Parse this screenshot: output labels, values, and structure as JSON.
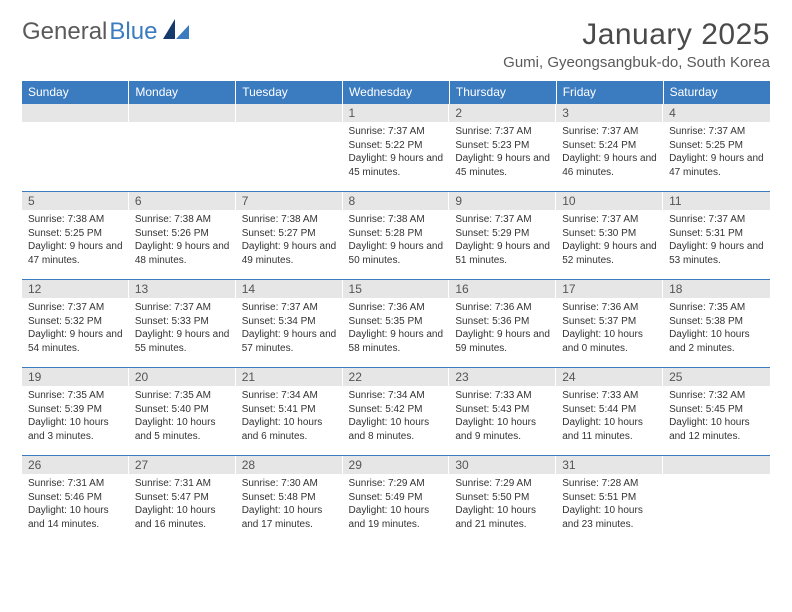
{
  "brand": {
    "part1": "General",
    "part2": "Blue"
  },
  "title": "January 2025",
  "location": "Gumi, Gyeongsangbuk-do, South Korea",
  "colors": {
    "header_bg": "#3b7bbf",
    "header_text": "#ffffff",
    "daynum_bg": "#e6e6e6",
    "rule": "#3b7bbf",
    "text": "#333333",
    "logo_gray": "#5a5a5a",
    "logo_blue": "#3b7bbf"
  },
  "day_headers": [
    "Sunday",
    "Monday",
    "Tuesday",
    "Wednesday",
    "Thursday",
    "Friday",
    "Saturday"
  ],
  "weeks": [
    [
      null,
      null,
      null,
      {
        "n": 1,
        "sunrise": "7:37 AM",
        "sunset": "5:22 PM",
        "dl": "9 hours and 45 minutes."
      },
      {
        "n": 2,
        "sunrise": "7:37 AM",
        "sunset": "5:23 PM",
        "dl": "9 hours and 45 minutes."
      },
      {
        "n": 3,
        "sunrise": "7:37 AM",
        "sunset": "5:24 PM",
        "dl": "9 hours and 46 minutes."
      },
      {
        "n": 4,
        "sunrise": "7:37 AM",
        "sunset": "5:25 PM",
        "dl": "9 hours and 47 minutes."
      }
    ],
    [
      {
        "n": 5,
        "sunrise": "7:38 AM",
        "sunset": "5:25 PM",
        "dl": "9 hours and 47 minutes."
      },
      {
        "n": 6,
        "sunrise": "7:38 AM",
        "sunset": "5:26 PM",
        "dl": "9 hours and 48 minutes."
      },
      {
        "n": 7,
        "sunrise": "7:38 AM",
        "sunset": "5:27 PM",
        "dl": "9 hours and 49 minutes."
      },
      {
        "n": 8,
        "sunrise": "7:38 AM",
        "sunset": "5:28 PM",
        "dl": "9 hours and 50 minutes."
      },
      {
        "n": 9,
        "sunrise": "7:37 AM",
        "sunset": "5:29 PM",
        "dl": "9 hours and 51 minutes."
      },
      {
        "n": 10,
        "sunrise": "7:37 AM",
        "sunset": "5:30 PM",
        "dl": "9 hours and 52 minutes."
      },
      {
        "n": 11,
        "sunrise": "7:37 AM",
        "sunset": "5:31 PM",
        "dl": "9 hours and 53 minutes."
      }
    ],
    [
      {
        "n": 12,
        "sunrise": "7:37 AM",
        "sunset": "5:32 PM",
        "dl": "9 hours and 54 minutes."
      },
      {
        "n": 13,
        "sunrise": "7:37 AM",
        "sunset": "5:33 PM",
        "dl": "9 hours and 55 minutes."
      },
      {
        "n": 14,
        "sunrise": "7:37 AM",
        "sunset": "5:34 PM",
        "dl": "9 hours and 57 minutes."
      },
      {
        "n": 15,
        "sunrise": "7:36 AM",
        "sunset": "5:35 PM",
        "dl": "9 hours and 58 minutes."
      },
      {
        "n": 16,
        "sunrise": "7:36 AM",
        "sunset": "5:36 PM",
        "dl": "9 hours and 59 minutes."
      },
      {
        "n": 17,
        "sunrise": "7:36 AM",
        "sunset": "5:37 PM",
        "dl": "10 hours and 0 minutes."
      },
      {
        "n": 18,
        "sunrise": "7:35 AM",
        "sunset": "5:38 PM",
        "dl": "10 hours and 2 minutes."
      }
    ],
    [
      {
        "n": 19,
        "sunrise": "7:35 AM",
        "sunset": "5:39 PM",
        "dl": "10 hours and 3 minutes."
      },
      {
        "n": 20,
        "sunrise": "7:35 AM",
        "sunset": "5:40 PM",
        "dl": "10 hours and 5 minutes."
      },
      {
        "n": 21,
        "sunrise": "7:34 AM",
        "sunset": "5:41 PM",
        "dl": "10 hours and 6 minutes."
      },
      {
        "n": 22,
        "sunrise": "7:34 AM",
        "sunset": "5:42 PM",
        "dl": "10 hours and 8 minutes."
      },
      {
        "n": 23,
        "sunrise": "7:33 AM",
        "sunset": "5:43 PM",
        "dl": "10 hours and 9 minutes."
      },
      {
        "n": 24,
        "sunrise": "7:33 AM",
        "sunset": "5:44 PM",
        "dl": "10 hours and 11 minutes."
      },
      {
        "n": 25,
        "sunrise": "7:32 AM",
        "sunset": "5:45 PM",
        "dl": "10 hours and 12 minutes."
      }
    ],
    [
      {
        "n": 26,
        "sunrise": "7:31 AM",
        "sunset": "5:46 PM",
        "dl": "10 hours and 14 minutes."
      },
      {
        "n": 27,
        "sunrise": "7:31 AM",
        "sunset": "5:47 PM",
        "dl": "10 hours and 16 minutes."
      },
      {
        "n": 28,
        "sunrise": "7:30 AM",
        "sunset": "5:48 PM",
        "dl": "10 hours and 17 minutes."
      },
      {
        "n": 29,
        "sunrise": "7:29 AM",
        "sunset": "5:49 PM",
        "dl": "10 hours and 19 minutes."
      },
      {
        "n": 30,
        "sunrise": "7:29 AM",
        "sunset": "5:50 PM",
        "dl": "10 hours and 21 minutes."
      },
      {
        "n": 31,
        "sunrise": "7:28 AM",
        "sunset": "5:51 PM",
        "dl": "10 hours and 23 minutes."
      },
      null
    ]
  ],
  "labels": {
    "sunrise": "Sunrise:",
    "sunset": "Sunset:",
    "daylight": "Daylight:"
  }
}
